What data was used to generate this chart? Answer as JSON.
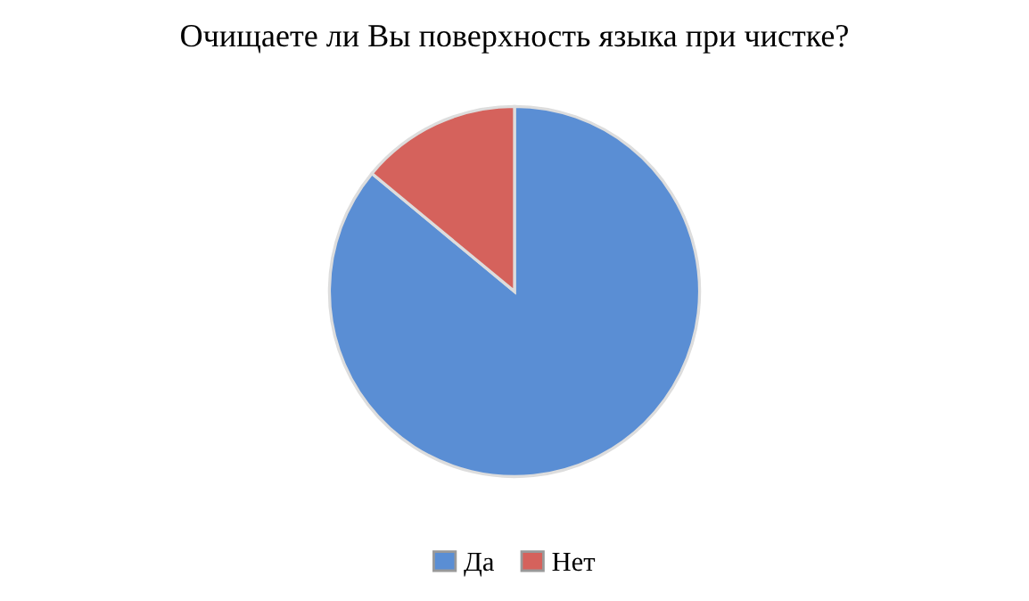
{
  "chart_data": {
    "type": "pie",
    "title": "Очищаете ли Вы поверхность языка при чистке?",
    "categories": [
      "Да",
      "Нет"
    ],
    "values": [
      86,
      14
    ],
    "colors": [
      "#5a8ed4",
      "#d5625c"
    ],
    "legend": "bottom"
  }
}
